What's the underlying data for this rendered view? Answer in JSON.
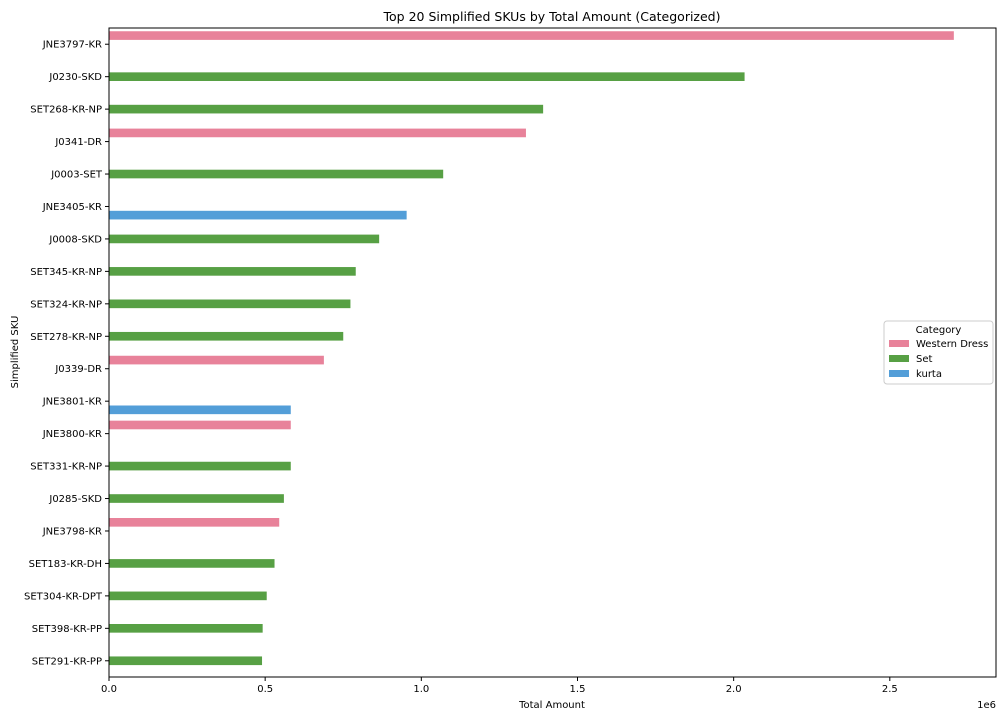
{
  "chart_data": {
    "type": "bar",
    "orientation": "horizontal",
    "title": "Top 20 Simplified SKUs by Total Amount (Categorized)",
    "xlabel": "Total Amount",
    "ylabel": "Simplified SKU",
    "x_scale_label": "1e6",
    "xlim": [
      0,
      2840000
    ],
    "x_ticks": [
      0,
      500000,
      1000000,
      1500000,
      2000000,
      2500000
    ],
    "x_tick_labels": [
      "0.0",
      "0.5",
      "1.0",
      "1.5",
      "2.0",
      "2.5"
    ],
    "grid": false,
    "legend": {
      "title": "Category",
      "placement": "center-right"
    },
    "series": [
      {
        "name": "Western Dress",
        "color": "#e8829a"
      },
      {
        "name": "Set",
        "color": "#57a044"
      },
      {
        "name": "kurta",
        "color": "#539ed8"
      }
    ],
    "categories": [
      "JNE3797-KR",
      "J0230-SKD",
      "SET268-KR-NP",
      "J0341-DR",
      "J0003-SET",
      "JNE3405-KR",
      "J0008-SKD",
      "SET345-KR-NP",
      "SET324-KR-NP",
      "SET278-KR-NP",
      "J0339-DR",
      "JNE3801-KR",
      "JNE3800-KR",
      "SET331-KR-NP",
      "J0285-SKD",
      "JNE3798-KR",
      "SET183-KR-DH",
      "SET304-KR-DPT",
      "SET398-KR-PP",
      "SET291-KR-PP"
    ],
    "bars": [
      {
        "sku": "JNE3797-KR",
        "category": "Western Dress",
        "value": 2705000
      },
      {
        "sku": "J0230-SKD",
        "category": "Set",
        "value": 2035000
      },
      {
        "sku": "SET268-KR-NP",
        "category": "Set",
        "value": 1390000
      },
      {
        "sku": "J0341-DR",
        "category": "Western Dress",
        "value": 1335000
      },
      {
        "sku": "J0003-SET",
        "category": "Set",
        "value": 1070000
      },
      {
        "sku": "JNE3405-KR",
        "category": "kurta",
        "value": 953000
      },
      {
        "sku": "J0008-SKD",
        "category": "Set",
        "value": 865000
      },
      {
        "sku": "SET345-KR-NP",
        "category": "Set",
        "value": 790000
      },
      {
        "sku": "SET324-KR-NP",
        "category": "Set",
        "value": 773000
      },
      {
        "sku": "SET278-KR-NP",
        "category": "Set",
        "value": 750000
      },
      {
        "sku": "J0339-DR",
        "category": "Western Dress",
        "value": 688000
      },
      {
        "sku": "JNE3801-KR",
        "category": "kurta",
        "value": 582000
      },
      {
        "sku": "JNE3800-KR",
        "category": "Western Dress",
        "value": 582000
      },
      {
        "sku": "SET331-KR-NP",
        "category": "Set",
        "value": 582000
      },
      {
        "sku": "J0285-SKD",
        "category": "Set",
        "value": 560000
      },
      {
        "sku": "JNE3798-KR",
        "category": "Western Dress",
        "value": 545000
      },
      {
        "sku": "SET183-KR-DH",
        "category": "Set",
        "value": 530000
      },
      {
        "sku": "SET304-KR-DPT",
        "category": "Set",
        "value": 505000
      },
      {
        "sku": "SET398-KR-PP",
        "category": "Set",
        "value": 492000
      },
      {
        "sku": "SET291-KR-PP",
        "category": "Set",
        "value": 490000
      }
    ]
  }
}
